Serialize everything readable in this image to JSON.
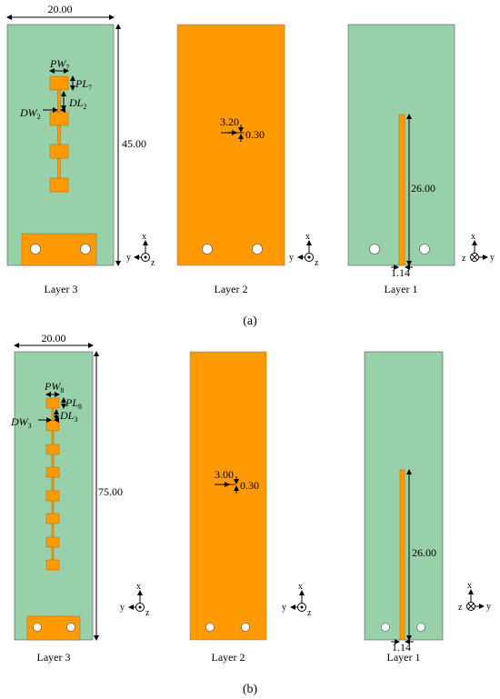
{
  "dimensions": {
    "a_width": "20.00",
    "a_length": "45.00",
    "a_slot_l": "3.20",
    "a_slot_w": "0.30",
    "a_feed_l": "26.00",
    "a_feed_w": "1.14",
    "b_width": "20.00",
    "b_length": "75.00",
    "b_slot_l": "3.00",
    "b_slot_w": "0.30",
    "b_feed_l": "26.00",
    "b_feed_w": "1.14"
  },
  "symbols": {
    "a_pw": "PW",
    "a_pw_sub": "7",
    "a_pl": "PL",
    "a_pl_sub": "7",
    "a_dw": "DW",
    "a_dw_sub": "2",
    "a_dl": "DL",
    "a_dl_sub": "2",
    "b_pw": "PW",
    "b_pw_sub": "8",
    "b_pl": "PL",
    "b_pl_sub": "8",
    "b_dw": "DW",
    "b_dw_sub": "3",
    "b_dl": "DL",
    "b_dl_sub": "3"
  },
  "layers": {
    "layer3": "Layer 3",
    "layer2": "Layer 2",
    "layer1": "Layer 1"
  },
  "axes": {
    "x": "x",
    "y": "y",
    "z": "z"
  },
  "captions": {
    "a": "(a)",
    "b": "(b)"
  },
  "colors": {
    "substrate": "#97d0a9",
    "copper": "#ff9a02"
  }
}
